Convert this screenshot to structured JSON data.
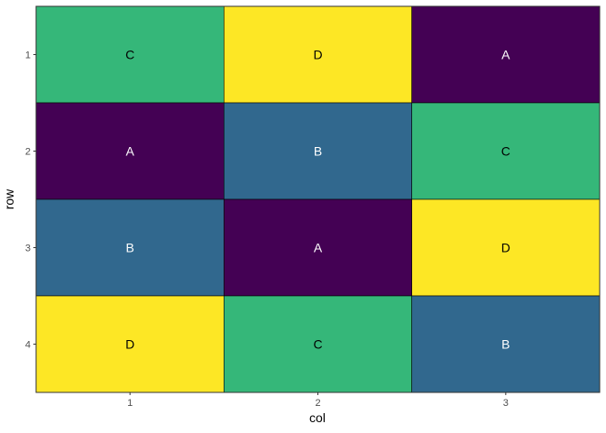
{
  "chart_data": {
    "type": "heatmap",
    "xlabel": "col",
    "ylabel": "row",
    "x_ticks": [
      "1",
      "2",
      "3"
    ],
    "y_ticks": [
      "1",
      "2",
      "3",
      "4"
    ],
    "grid": false,
    "legend": "none",
    "colors": {
      "A": "#440154",
      "B": "#31688E",
      "C": "#35B779",
      "D": "#FDE725"
    },
    "label_colors": {
      "A": "#ffffff",
      "B": "#ffffff",
      "C": "#000000",
      "D": "#000000"
    },
    "cells": [
      {
        "row": 1,
        "col": 1,
        "label": "C"
      },
      {
        "row": 1,
        "col": 2,
        "label": "D"
      },
      {
        "row": 1,
        "col": 3,
        "label": "A"
      },
      {
        "row": 2,
        "col": 1,
        "label": "A"
      },
      {
        "row": 2,
        "col": 2,
        "label": "B"
      },
      {
        "row": 2,
        "col": 3,
        "label": "C"
      },
      {
        "row": 3,
        "col": 1,
        "label": "B"
      },
      {
        "row": 3,
        "col": 2,
        "label": "A"
      },
      {
        "row": 3,
        "col": 3,
        "label": "D"
      },
      {
        "row": 4,
        "col": 1,
        "label": "D"
      },
      {
        "row": 4,
        "col": 2,
        "label": "C"
      },
      {
        "row": 4,
        "col": 3,
        "label": "B"
      }
    ]
  }
}
